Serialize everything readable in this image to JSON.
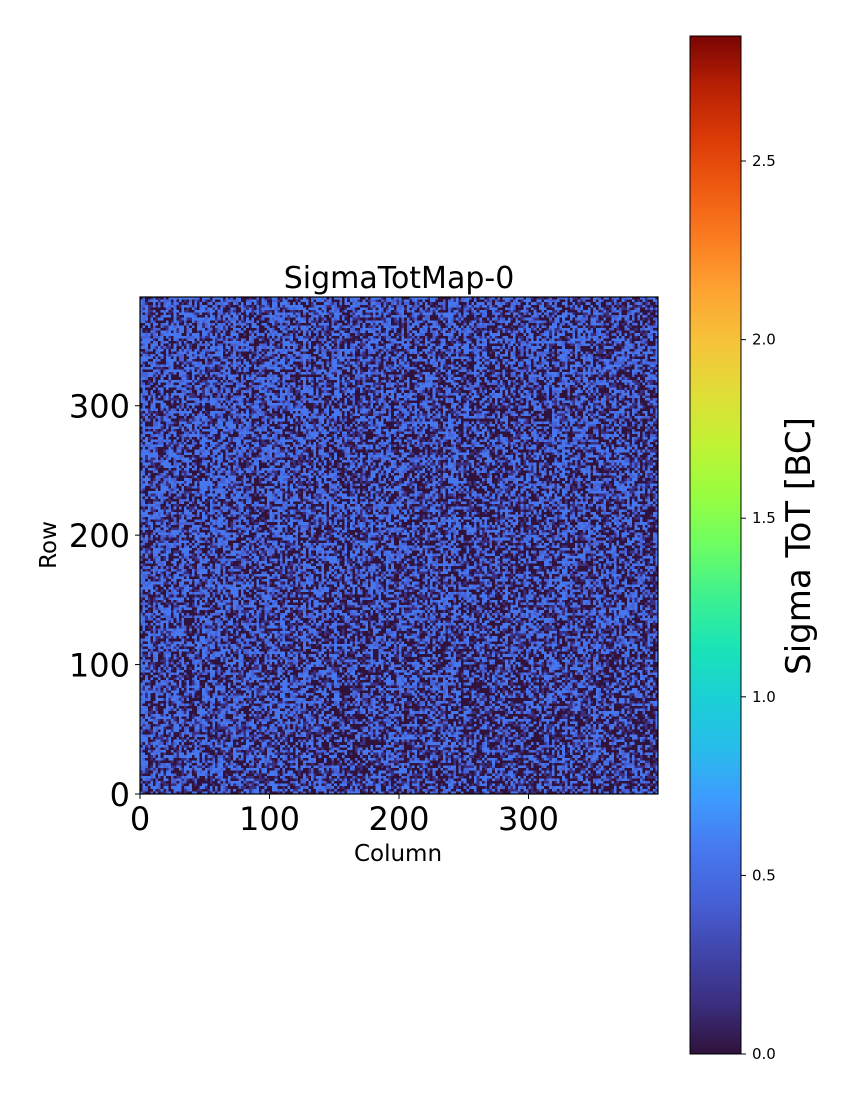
{
  "chart_data": {
    "type": "heatmap",
    "title": "SigmaTotMap-0",
    "xlabel": "Column",
    "ylabel": "Row",
    "xlim": [
      0,
      400
    ],
    "ylim": [
      0,
      384
    ],
    "x_ticks": [
      0,
      100,
      200,
      300
    ],
    "y_ticks": [
      0,
      100,
      200,
      300
    ],
    "x_tick_labels": [
      "0",
      "100",
      "200",
      "300"
    ],
    "y_tick_labels": [
      "0",
      "100",
      "200",
      "300"
    ],
    "grid": false,
    "colormap": "turbo",
    "colorbar": {
      "label": "Sigma ToT [BC]",
      "vmin": 0.0,
      "vmax": 2.85,
      "ticks": [
        0.0,
        0.5,
        1.0,
        1.5,
        2.0,
        2.5
      ],
      "tick_labels": [
        "0.0",
        "0.5",
        "1.0",
        "1.5",
        "2.0",
        "2.5"
      ]
    },
    "value_distribution": {
      "dominant_values": [
        0.05,
        0.45
      ],
      "description_note": "pixel values mostly near 0.0-0.1 (dark) or ~0.4-0.5 (blue)"
    },
    "colors": {
      "low": "#30123b",
      "mid_blue": "#4777ef",
      "high": "#7a0403"
    }
  }
}
